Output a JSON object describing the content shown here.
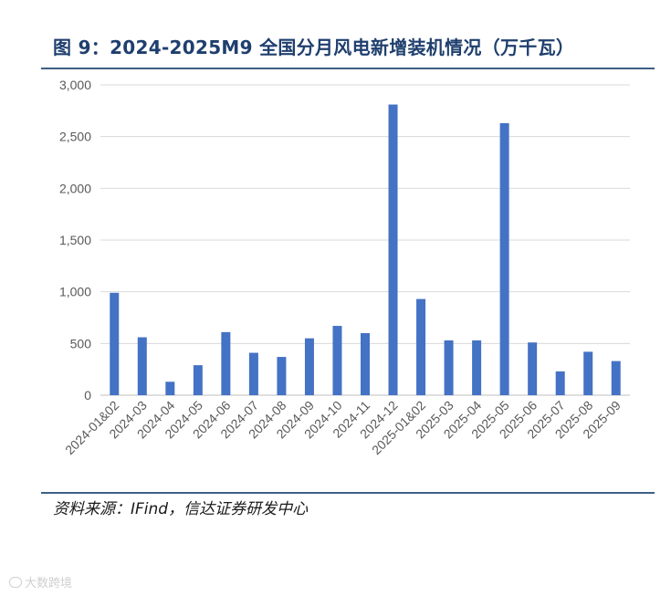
{
  "header": {
    "title": "图 9：2024-2025M9 全国分月风电新增装机情况（万千瓦）"
  },
  "footer": {
    "source": "资料来源：IFind，信达证券研发中心",
    "watermark": "大数跨境"
  },
  "colors": {
    "bar": "#4472c4",
    "title": "#1f3f6e",
    "rule": "#3f5f86",
    "grid": "#d9d9d9"
  },
  "chart_data": {
    "type": "bar",
    "title": "图 9：2024-2025M9 全国分月风电新增装机情况（万千瓦）",
    "xlabel": "",
    "ylabel": "",
    "categories": [
      "2024-01&02",
      "2024-03",
      "2024-04",
      "2024-05",
      "2024-06",
      "2024-07",
      "2024-08",
      "2024-09",
      "2024-10",
      "2024-11",
      "2024-12",
      "2025-01&02",
      "2025-03",
      "2025-04",
      "2025-05",
      "2025-06",
      "2025-07",
      "2025-08",
      "2025-09"
    ],
    "series": [
      {
        "values": [
          990,
          560,
          130,
          290,
          610,
          410,
          370,
          550,
          670,
          600,
          2810,
          930,
          530,
          530,
          2630,
          510,
          230,
          420,
          330
        ]
      }
    ],
    "ylim": [
      0,
      3000
    ],
    "yticks": [
      0,
      500,
      1000,
      1500,
      2000,
      2500,
      3000
    ],
    "yticklabels": [
      "0",
      "500",
      "1,000",
      "1,500",
      "2,000",
      "2,500",
      "3,000"
    ],
    "grid": true,
    "legend": "none"
  }
}
